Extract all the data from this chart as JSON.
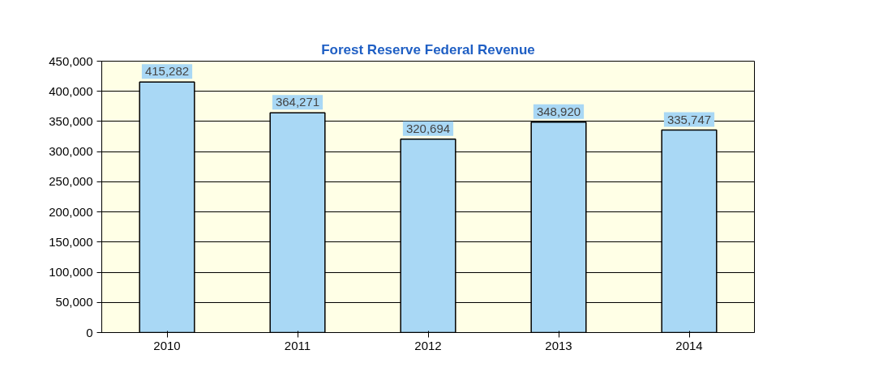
{
  "chart_data": {
    "type": "bar",
    "title": "Forest Reserve Federal Revenue",
    "categories": [
      "2010",
      "2011",
      "2012",
      "2013",
      "2014"
    ],
    "values": [
      415282,
      364271,
      320694,
      348920,
      335747
    ],
    "value_labels": [
      "415,282",
      "364,271",
      "320,694",
      "348,920",
      "335,747"
    ],
    "color": "#a9d8f5",
    "ylim": [
      0,
      450000
    ],
    "yticks": [
      0,
      {
        "value": 50000,
        "label": "50,000"
      },
      {
        "value": 100000,
        "label": "100,000"
      },
      {
        "value": 150000,
        "label": "150,000"
      },
      {
        "value": 200000,
        "label": "200,000"
      },
      {
        "value": 250000,
        "label": "250,000"
      },
      {
        "value": 300000,
        "label": "300,000"
      },
      {
        "value": 350000,
        "label": "350,000"
      },
      {
        "value": 400000,
        "label": "400,000"
      },
      {
        "value": 450000,
        "label": "450,000"
      }
    ],
    "grid": "y"
  }
}
